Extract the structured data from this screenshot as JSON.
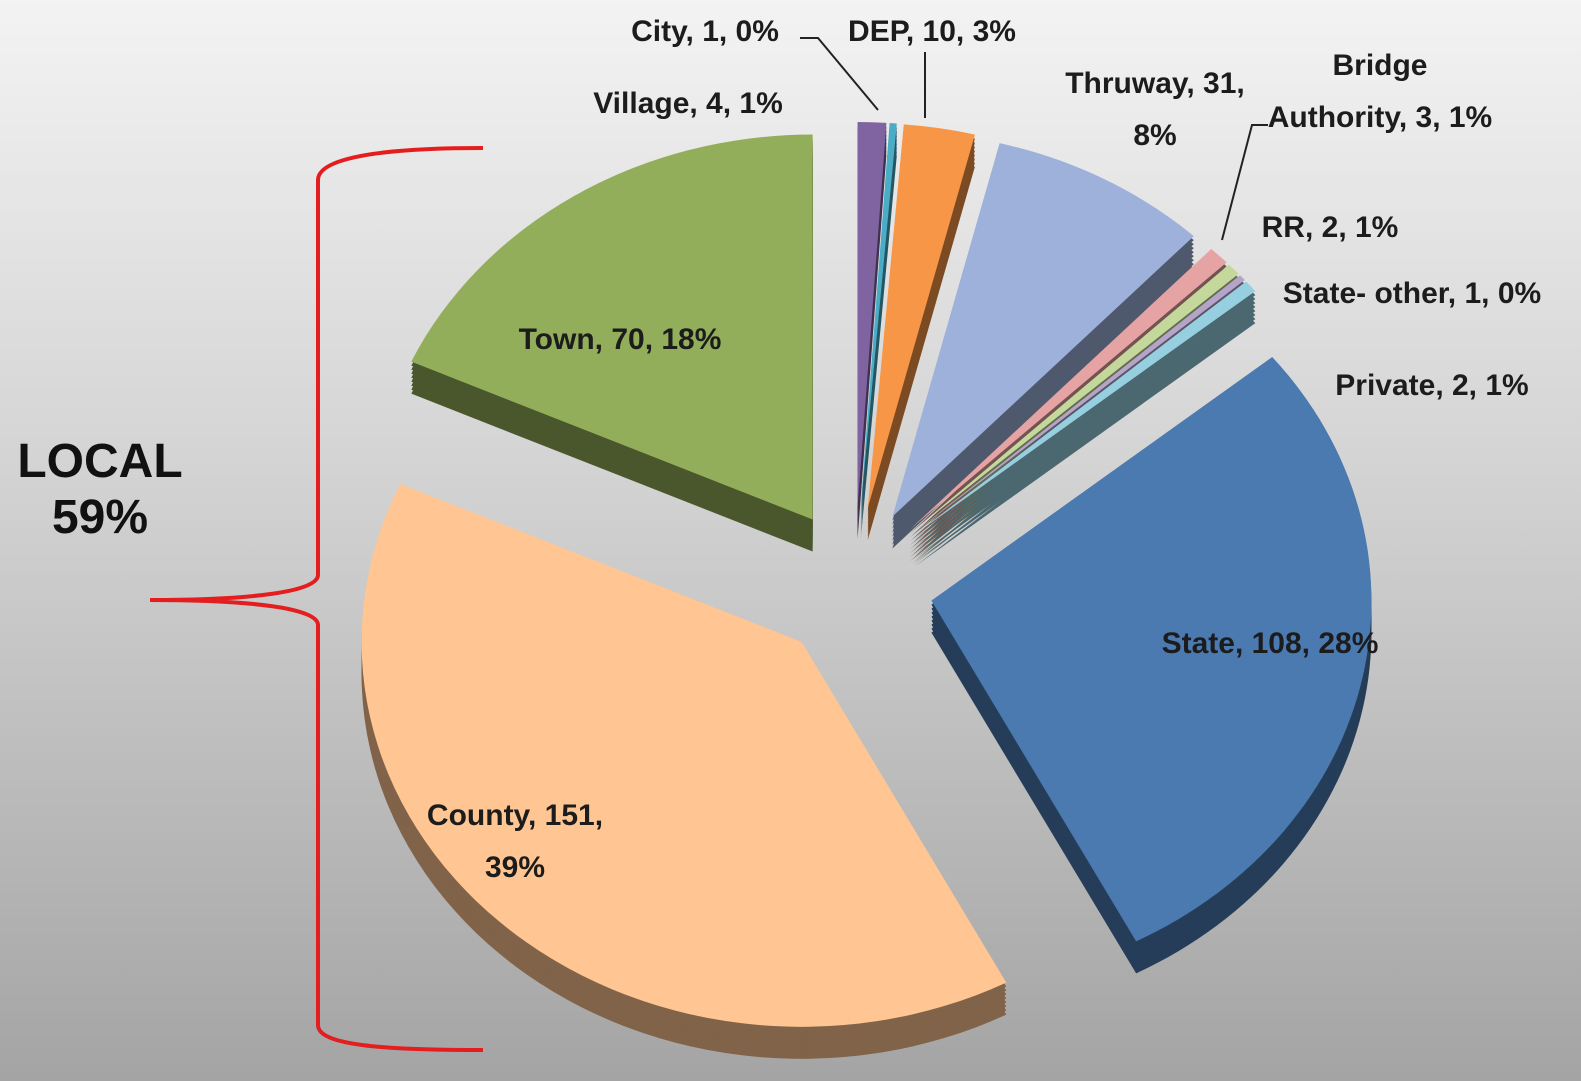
{
  "chart_data": {
    "type": "pie",
    "categories": [
      "Village",
      "City",
      "DEP",
      "Thruway",
      "Bridge Authority",
      "RR",
      "State- other",
      "Private",
      "State",
      "County",
      "Town"
    ],
    "values": [
      4,
      1,
      10,
      31,
      3,
      2,
      1,
      2,
      108,
      151,
      70
    ],
    "value_labels": [
      "Village, 4, 1%",
      "City, 1, 0%",
      "DEP, 10, 3%",
      "Thruway, 31, 8%",
      "Bridge Authority, 3, 1%",
      "RR, 2, 1%",
      "State- other, 1, 0%",
      "Private, 2, 1%",
      "State, 108, 28%",
      "County, 151, 39%",
      "Town, 70, 18%"
    ],
    "colors": [
      "#8064a2",
      "#4bacc6",
      "#f79646",
      "#9db1da",
      "#e6a3a3",
      "#c5d89c",
      "#b5a4c9",
      "#95cfe0",
      "#4a7ab0",
      "#ffc592",
      "#93ae5a"
    ],
    "annotation": "LOCAL 59%"
  }
}
